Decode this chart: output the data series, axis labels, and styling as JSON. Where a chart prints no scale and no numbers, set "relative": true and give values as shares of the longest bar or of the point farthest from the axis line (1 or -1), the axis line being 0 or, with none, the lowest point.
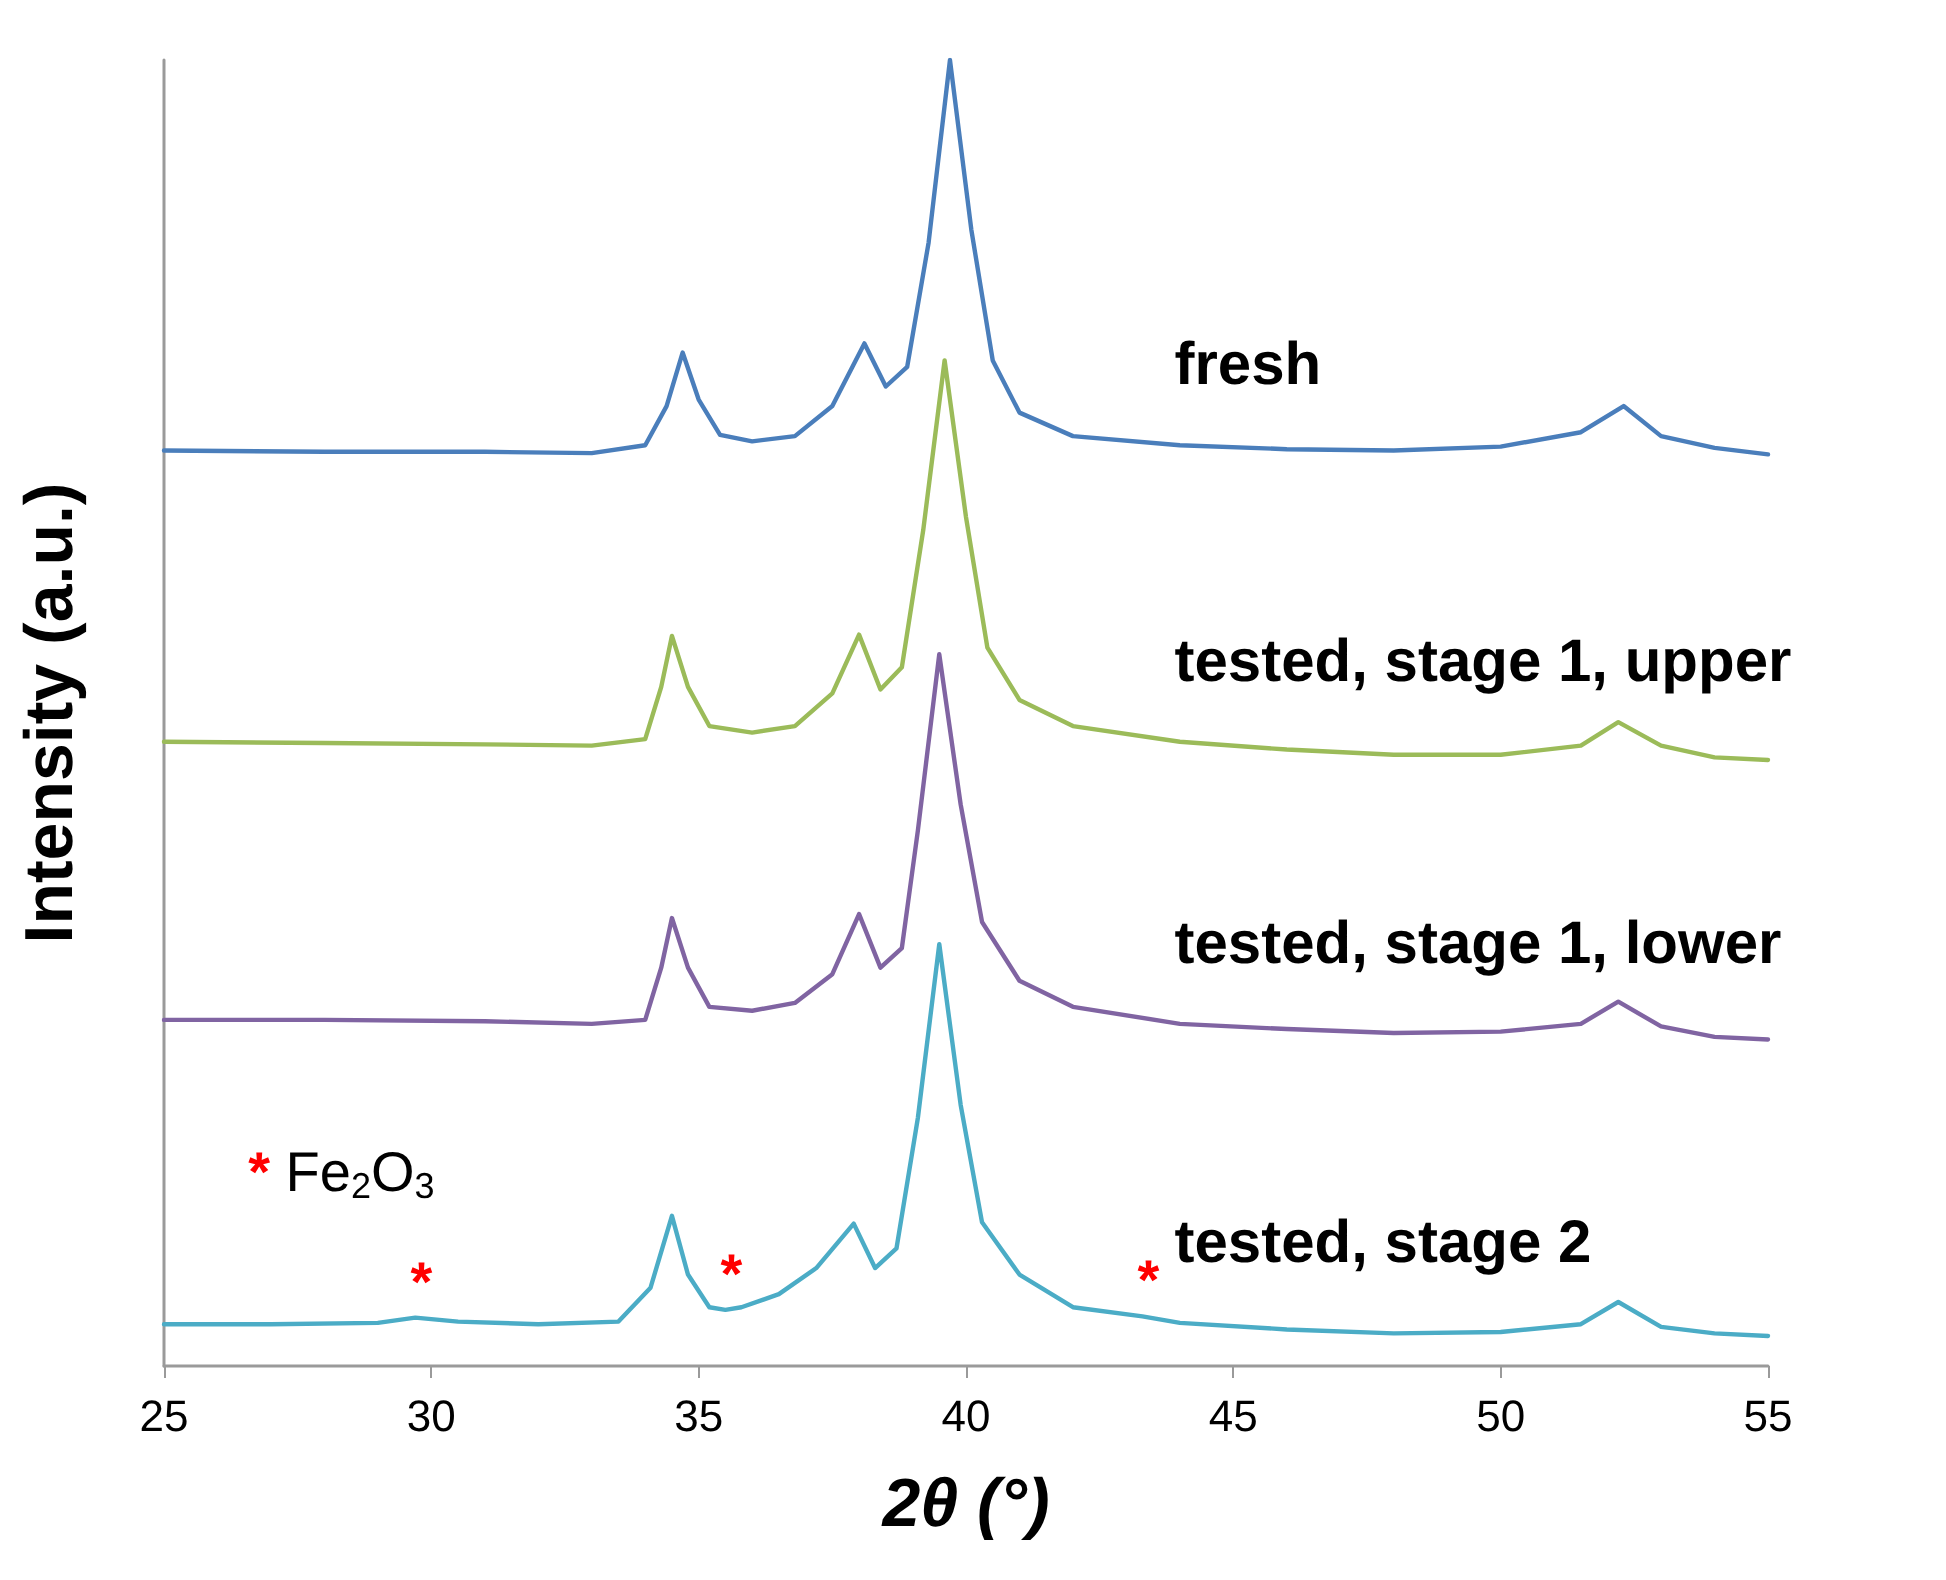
{
  "chart_data": {
    "type": "line",
    "relative": true,
    "xlabel": "2θ (°)",
    "ylabel": "Intensity (a.u.)",
    "xlim": [
      25,
      55
    ],
    "xticks": [
      25,
      30,
      35,
      40,
      45,
      50,
      55
    ],
    "grid": false,
    "legend": false,
    "marker": "none",
    "line_style": "solid",
    "annotations": [
      "* Fe$_{2}$O$_{3}$",
      {
        "text": "*",
        "x": 29.7,
        "y": 0.037
      },
      {
        "text": "*",
        "x": 35.5,
        "y": 0.043
      },
      {
        "text": "*",
        "x": 43.3,
        "y": 0.038
      }
    ],
    "series": [
      {
        "name": "fresh",
        "color": "#4a7ebb",
        "x": [
          25,
          28,
          31,
          33,
          34,
          34.4,
          34.7,
          35.0,
          35.4,
          36,
          36.8,
          37.5,
          38.1,
          38.5,
          38.9,
          39.3,
          39.7,
          40.1,
          40.5,
          41,
          42,
          44,
          46,
          48,
          50,
          51.5,
          52.3,
          53,
          54,
          55
        ],
        "values": [
          0.701,
          0.7,
          0.7,
          0.699,
          0.705,
          0.735,
          0.776,
          0.74,
          0.713,
          0.708,
          0.712,
          0.735,
          0.783,
          0.75,
          0.765,
          0.86,
          1.0,
          0.87,
          0.77,
          0.73,
          0.712,
          0.705,
          0.702,
          0.701,
          0.704,
          0.715,
          0.735,
          0.712,
          0.703,
          0.698
        ]
      },
      {
        "name": "tested, stage 1, upper",
        "color": "#9bbb59",
        "x": [
          25,
          28,
          31,
          33,
          34,
          34.3,
          34.5,
          34.8,
          35.2,
          36,
          36.8,
          37.5,
          38.0,
          38.4,
          38.8,
          39.2,
          39.6,
          40.0,
          40.4,
          41,
          42,
          44,
          46,
          48,
          50,
          51.5,
          52.2,
          53,
          54,
          55
        ],
        "values": [
          0.478,
          0.477,
          0.476,
          0.475,
          0.48,
          0.52,
          0.559,
          0.52,
          0.49,
          0.485,
          0.49,
          0.515,
          0.56,
          0.518,
          0.535,
          0.64,
          0.77,
          0.65,
          0.55,
          0.51,
          0.49,
          0.478,
          0.472,
          0.468,
          0.468,
          0.475,
          0.493,
          0.475,
          0.466,
          0.464
        ]
      },
      {
        "name": "tested, stage 1, lower",
        "color": "#8064a2",
        "x": [
          25,
          28,
          31,
          33,
          34,
          34.3,
          34.5,
          34.8,
          35.2,
          36,
          36.8,
          37.5,
          38.0,
          38.4,
          38.8,
          39.1,
          39.5,
          39.9,
          40.3,
          41,
          42,
          44,
          46,
          48,
          50,
          51.5,
          52.2,
          53,
          54,
          55
        ],
        "values": [
          0.265,
          0.265,
          0.264,
          0.262,
          0.265,
          0.305,
          0.343,
          0.305,
          0.275,
          0.272,
          0.278,
          0.3,
          0.346,
          0.305,
          0.32,
          0.41,
          0.545,
          0.43,
          0.34,
          0.295,
          0.275,
          0.262,
          0.258,
          0.255,
          0.256,
          0.262,
          0.279,
          0.26,
          0.252,
          0.25
        ]
      },
      {
        "name": "tested, stage 2",
        "color": "#4bacc6",
        "x": [
          25,
          27,
          29,
          29.7,
          30.5,
          32,
          33.5,
          34.1,
          34.5,
          34.8,
          35.2,
          35.5,
          35.8,
          36.5,
          37.2,
          37.9,
          38.3,
          38.7,
          39.1,
          39.5,
          39.9,
          40.3,
          41,
          42,
          43.3,
          44,
          46,
          48,
          50,
          51.5,
          52.2,
          53,
          54,
          55
        ],
        "values": [
          0.032,
          0.032,
          0.033,
          0.037,
          0.034,
          0.032,
          0.034,
          0.06,
          0.115,
          0.07,
          0.045,
          0.043,
          0.045,
          0.055,
          0.075,
          0.109,
          0.075,
          0.09,
          0.19,
          0.323,
          0.2,
          0.11,
          0.07,
          0.045,
          0.038,
          0.033,
          0.028,
          0.025,
          0.026,
          0.032,
          0.049,
          0.03,
          0.025,
          0.023
        ]
      }
    ]
  }
}
